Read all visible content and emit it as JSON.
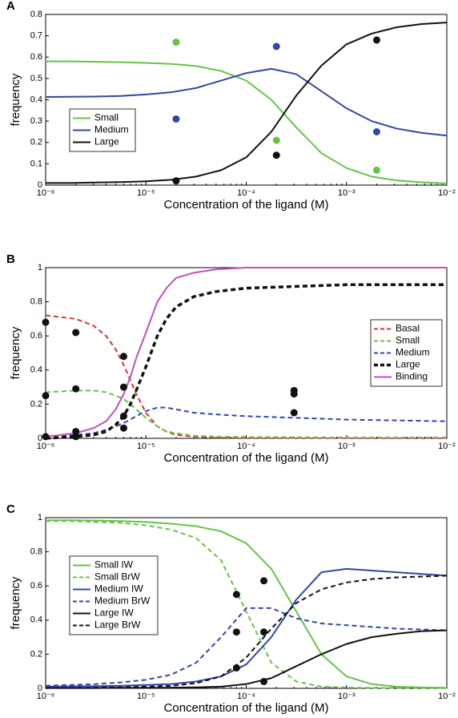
{
  "chart_data": [
    {
      "type": "line",
      "panel_label": "A",
      "xlabel": "Concentration of the ligand (M)",
      "ylabel": "frequency",
      "log_x": true,
      "legend": "center left",
      "xlim": [
        1e-06,
        0.01
      ],
      "xticks": [
        {
          "value": 1e-06,
          "label": "10⁻⁶"
        },
        {
          "value": 1e-05,
          "label": "10⁻⁵"
        },
        {
          "value": 0.0001,
          "label": "10⁻⁴"
        },
        {
          "value": 0.001,
          "label": "10⁻³"
        },
        {
          "value": 0.01,
          "label": "10⁻²"
        }
      ],
      "ylim": [
        0,
        0.8
      ],
      "yticks": [
        0,
        0.1,
        0.2,
        0.3,
        0.4,
        0.5,
        0.6,
        0.7,
        0.8
      ],
      "x": [
        1e-06,
        1.78e-06,
        3.16e-06,
        5.62e-06,
        1e-05,
        1.78e-05,
        3.16e-05,
        5.62e-05,
        0.0001,
        0.000178,
        0.000316,
        0.000562,
        0.001,
        0.00178,
        0.00316,
        0.00562,
        0.01
      ],
      "series": [
        {
          "name": "Small",
          "color": "#66c445",
          "values": [
            0.58,
            0.58,
            0.578,
            0.576,
            0.573,
            0.568,
            0.558,
            0.535,
            0.49,
            0.4,
            0.27,
            0.15,
            0.08,
            0.04,
            0.022,
            0.013,
            0.008
          ]
        },
        {
          "name": "Medium",
          "color": "#3346a8",
          "values": [
            0.413,
            0.414,
            0.415,
            0.418,
            0.425,
            0.435,
            0.455,
            0.49,
            0.525,
            0.545,
            0.52,
            0.44,
            0.36,
            0.3,
            0.265,
            0.245,
            0.232
          ]
        },
        {
          "name": "Large",
          "color": "#111111",
          "values": [
            0.01,
            0.01,
            0.012,
            0.014,
            0.018,
            0.025,
            0.04,
            0.07,
            0.13,
            0.25,
            0.42,
            0.56,
            0.66,
            0.71,
            0.74,
            0.755,
            0.762
          ]
        }
      ],
      "markers": [
        {
          "color": "#66c445",
          "x": [
            2e-05,
            0.0002,
            0.002
          ],
          "values": [
            0.67,
            0.21,
            0.07
          ]
        },
        {
          "color": "#3346a8",
          "x": [
            2e-05,
            0.0002,
            0.002
          ],
          "values": [
            0.31,
            0.65,
            0.25
          ]
        },
        {
          "color": "#111111",
          "x": [
            2e-05,
            0.0002,
            0.002
          ],
          "values": [
            0.02,
            0.14,
            0.68
          ]
        }
      ]
    },
    {
      "type": "line",
      "panel_label": "B",
      "xlabel": "Concentration of the ligand (M)",
      "ylabel": "frequency",
      "log_x": true,
      "legend": "center right",
      "xlim": [
        1e-06,
        0.01
      ],
      "xticks": [
        {
          "value": 1e-06,
          "label": "10⁻⁶"
        },
        {
          "value": 1e-05,
          "label": "10⁻⁵"
        },
        {
          "value": 0.0001,
          "label": "10⁻⁴"
        },
        {
          "value": 0.001,
          "label": "10⁻³"
        },
        {
          "value": 0.01,
          "label": "10⁻²"
        }
      ],
      "ylim": [
        0,
        1
      ],
      "yticks": [
        0,
        0.2,
        0.4,
        0.6,
        0.8,
        1
      ],
      "x": [
        1e-06,
        2e-06,
        3e-06,
        4e-06,
        5e-06,
        6e-06,
        7e-06,
        8e-06,
        1e-05,
        1.3e-05,
        1.6e-05,
        2e-05,
        3e-05,
        5e-05,
        0.0001,
        0.001,
        0.01
      ],
      "series": [
        {
          "name": "Basal",
          "color": "#e03030",
          "dash": true,
          "values": [
            0.72,
            0.7,
            0.66,
            0.6,
            0.52,
            0.43,
            0.34,
            0.26,
            0.15,
            0.07,
            0.04,
            0.02,
            0.01,
            0.005,
            0.003,
            0.002,
            0.002
          ]
        },
        {
          "name": "Small",
          "color": "#66c445",
          "dash": true,
          "values": [
            0.27,
            0.28,
            0.28,
            0.27,
            0.25,
            0.23,
            0.2,
            0.17,
            0.12,
            0.07,
            0.04,
            0.03,
            0.015,
            0.01,
            0.008,
            0.005,
            0.005
          ]
        },
        {
          "name": "Medium",
          "color": "#3346a8",
          "dash": true,
          "values": [
            0.01,
            0.02,
            0.03,
            0.05,
            0.07,
            0.09,
            0.11,
            0.13,
            0.16,
            0.18,
            0.18,
            0.17,
            0.15,
            0.14,
            0.13,
            0.11,
            0.1
          ]
        },
        {
          "name": "Large",
          "color": "#111111",
          "dash": true,
          "linewidth": 3.5,
          "values": [
            0.0,
            0.01,
            0.02,
            0.04,
            0.08,
            0.13,
            0.2,
            0.28,
            0.42,
            0.6,
            0.7,
            0.77,
            0.83,
            0.86,
            0.88,
            0.9,
            0.9
          ]
        },
        {
          "name": "Binding",
          "color": "#c050c0",
          "values": [
            0.01,
            0.03,
            0.06,
            0.1,
            0.17,
            0.26,
            0.36,
            0.47,
            0.62,
            0.8,
            0.88,
            0.94,
            0.97,
            0.99,
            1,
            1,
            1
          ]
        }
      ],
      "markers": [
        {
          "color": "#111111",
          "x": [
            1e-06,
            1e-06,
            1e-06,
            2e-06,
            2e-06,
            2e-06,
            2e-06,
            6e-06,
            6e-06,
            6e-06,
            6e-06,
            0.0003,
            0.0003,
            0.0003
          ],
          "values": [
            0.68,
            0.25,
            0.01,
            0.62,
            0.29,
            0.04,
            0.01,
            0.48,
            0.3,
            0.13,
            0.06,
            0.28,
            0.26,
            0.15
          ]
        }
      ]
    },
    {
      "type": "line",
      "panel_label": "C",
      "xlabel": "Concentration of the ligand (M)",
      "ylabel": "frequency",
      "log_x": true,
      "legend": "upper left",
      "xlim": [
        1e-06,
        0.01
      ],
      "xticks": [
        {
          "value": 1e-06,
          "label": "10⁻⁶"
        },
        {
          "value": 1e-05,
          "label": "10⁻⁵"
        },
        {
          "value": 0.0001,
          "label": "10⁻⁴"
        },
        {
          "value": 0.001,
          "label": "10⁻³"
        },
        {
          "value": 0.01,
          "label": "10⁻²"
        }
      ],
      "ylim": [
        0,
        1
      ],
      "yticks": [
        0,
        0.2,
        0.4,
        0.6,
        0.8,
        1
      ],
      "x": [
        1e-06,
        1.78e-06,
        3.16e-06,
        5.62e-06,
        1e-05,
        1.78e-05,
        3.16e-05,
        5.62e-05,
        0.0001,
        0.000178,
        0.000316,
        0.000562,
        0.001,
        0.00178,
        0.00316,
        0.00562,
        0.01
      ],
      "series": [
        {
          "name": "Small IW",
          "color": "#66c445",
          "values": [
            0.985,
            0.985,
            0.983,
            0.98,
            0.975,
            0.965,
            0.95,
            0.92,
            0.85,
            0.7,
            0.45,
            0.2,
            0.07,
            0.025,
            0.01,
            0.005,
            0.003
          ]
        },
        {
          "name": "Small BrW",
          "color": "#66c445",
          "dash": true,
          "values": [
            0.98,
            0.98,
            0.975,
            0.97,
            0.955,
            0.93,
            0.88,
            0.75,
            0.45,
            0.15,
            0.04,
            0.01,
            0.005,
            0.003,
            0.002,
            0.002,
            0.002
          ]
        },
        {
          "name": "Medium IW",
          "color": "#3346a8",
          "values": [
            0.01,
            0.012,
            0.013,
            0.015,
            0.02,
            0.025,
            0.04,
            0.07,
            0.14,
            0.3,
            0.52,
            0.68,
            0.7,
            0.69,
            0.68,
            0.67,
            0.66
          ]
        },
        {
          "name": "Medium BrW",
          "color": "#3346a8",
          "dash": true,
          "values": [
            0.015,
            0.02,
            0.025,
            0.035,
            0.05,
            0.08,
            0.15,
            0.3,
            0.47,
            0.47,
            0.41,
            0.38,
            0.37,
            0.36,
            0.35,
            0.345,
            0.34
          ]
        },
        {
          "name": "Large IW",
          "color": "#111111",
          "values": [
            0.002,
            0.002,
            0.002,
            0.003,
            0.003,
            0.004,
            0.006,
            0.01,
            0.025,
            0.06,
            0.13,
            0.2,
            0.26,
            0.3,
            0.32,
            0.335,
            0.34
          ]
        },
        {
          "name": "Large BrW",
          "color": "#111111",
          "dash": true,
          "values": [
            0.002,
            0.003,
            0.004,
            0.006,
            0.01,
            0.015,
            0.03,
            0.07,
            0.18,
            0.35,
            0.5,
            0.58,
            0.62,
            0.64,
            0.65,
            0.655,
            0.66
          ]
        }
      ],
      "markers": [
        {
          "color": "#111111",
          "x": [
            8e-05,
            8e-05,
            8e-05,
            0.00015,
            0.00015,
            0.00015
          ],
          "values": [
            0.55,
            0.33,
            0.12,
            0.63,
            0.33,
            0.04
          ]
        }
      ]
    }
  ]
}
